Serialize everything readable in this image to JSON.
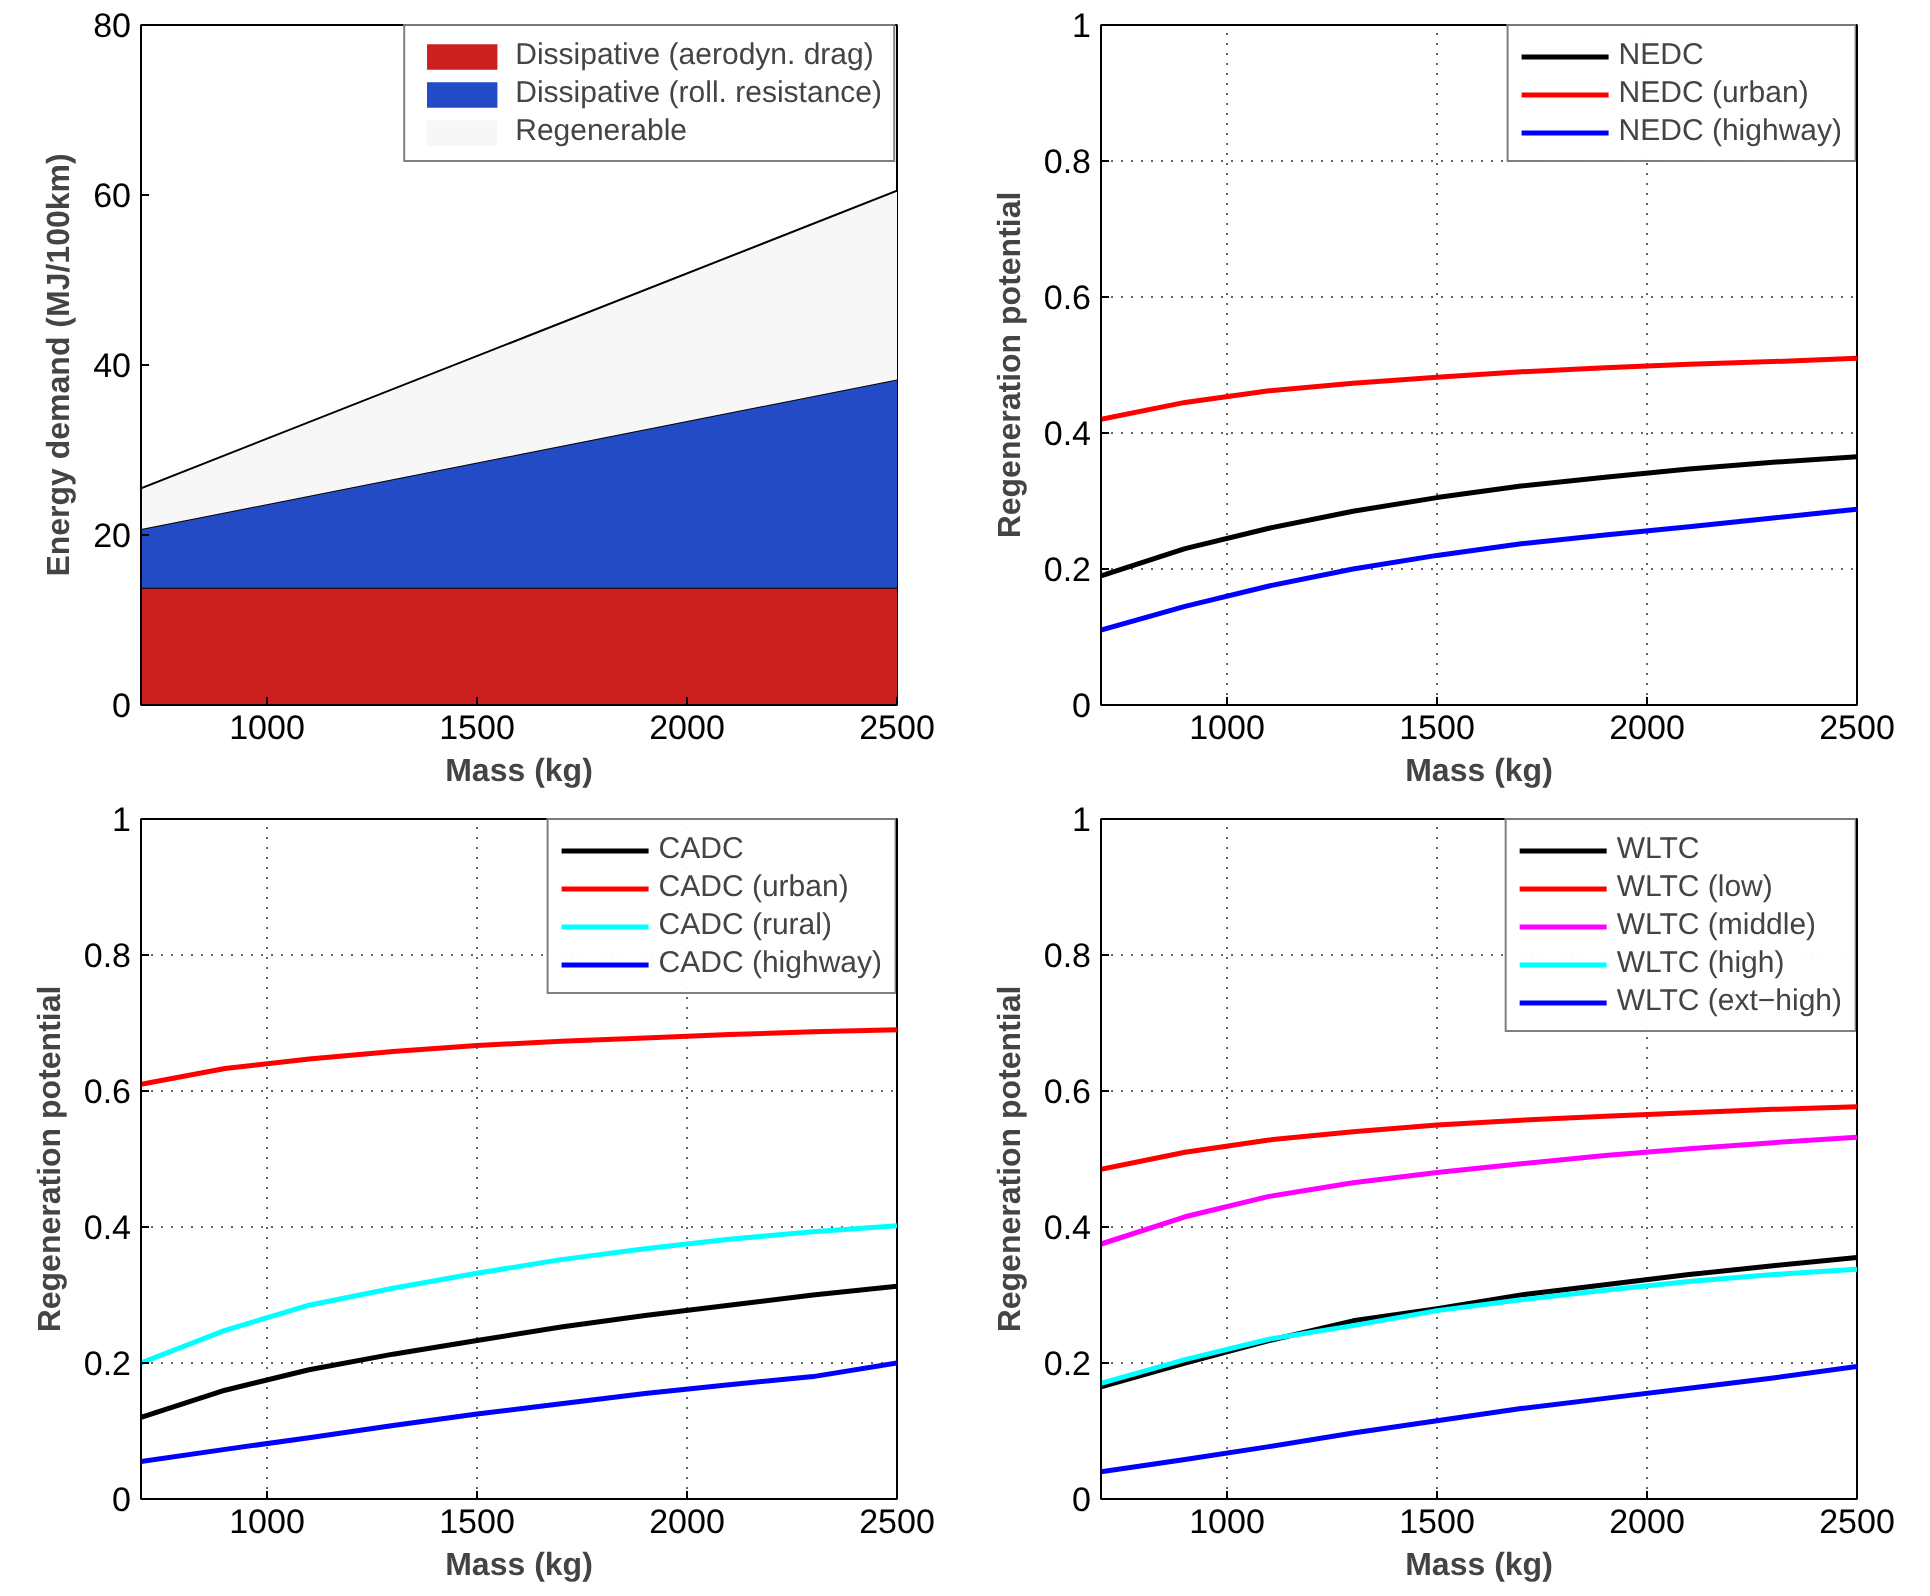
{
  "chart_data": [
    {
      "type": "area",
      "stacked": true,
      "xlabel": "Mass (kg)",
      "ylabel": "Energy demand (MJ/100km)",
      "x": [
        700,
        1600,
        2500
      ],
      "xlim": [
        700,
        2500
      ],
      "xticks": [
        1000,
        1500,
        2000,
        2500
      ],
      "ylim": [
        0,
        80
      ],
      "yticks": [
        0,
        20,
        40,
        60,
        80
      ],
      "legend": "top right",
      "series": [
        {
          "name": "Dissipative (aerodyn. drag)",
          "color": "#cc1f1f",
          "values": [
            13.8,
            13.8,
            13.8
          ]
        },
        {
          "name": "Dissipative (roll. resistance)",
          "color": "#234bc6",
          "values": [
            6.9,
            15.7,
            24.5
          ]
        },
        {
          "name": "Regenerable",
          "color": "#f7f7f7",
          "values": [
            4.8,
            13.5,
            22.2
          ]
        }
      ]
    },
    {
      "type": "line",
      "xlabel": "Mass (kg)",
      "ylabel": "Regeneration potential",
      "x": [
        700,
        900,
        1100,
        1300,
        1500,
        1700,
        1900,
        2100,
        2300,
        2500
      ],
      "xlim": [
        700,
        2500
      ],
      "xticks": [
        1000,
        1500,
        2000,
        2500
      ],
      "ylim": [
        0,
        1
      ],
      "yticks": [
        0,
        0.2,
        0.4,
        0.6,
        0.8,
        1
      ],
      "grid": true,
      "legend": "top right",
      "series": [
        {
          "name": "NEDC",
          "color": "#000000",
          "values": [
            0.19,
            0.23,
            0.26,
            0.285,
            0.305,
            0.322,
            0.335,
            0.347,
            0.357,
            0.365
          ]
        },
        {
          "name": "NEDC (urban)",
          "color": "#ff0000",
          "values": [
            0.42,
            0.445,
            0.462,
            0.473,
            0.482,
            0.49,
            0.496,
            0.501,
            0.505,
            0.51
          ]
        },
        {
          "name": "NEDC (highway)",
          "color": "#0000ff",
          "values": [
            0.11,
            0.145,
            0.175,
            0.2,
            0.22,
            0.237,
            0.25,
            0.262,
            0.275,
            0.288
          ]
        }
      ]
    },
    {
      "type": "line",
      "xlabel": "Mass (kg)",
      "ylabel": "Regeneration potential",
      "x": [
        700,
        900,
        1100,
        1300,
        1500,
        1700,
        1900,
        2100,
        2300,
        2500
      ],
      "xlim": [
        700,
        2500
      ],
      "xticks": [
        1000,
        1500,
        2000,
        2500
      ],
      "ylim": [
        0,
        1
      ],
      "yticks": [
        0,
        0.2,
        0.4,
        0.6,
        0.8,
        1
      ],
      "grid": true,
      "legend": "top right",
      "series": [
        {
          "name": "CADC",
          "color": "#000000",
          "values": [
            0.12,
            0.16,
            0.19,
            0.213,
            0.233,
            0.253,
            0.27,
            0.285,
            0.3,
            0.313
          ]
        },
        {
          "name": "CADC (urban)",
          "color": "#ff0000",
          "values": [
            0.61,
            0.633,
            0.647,
            0.658,
            0.667,
            0.673,
            0.678,
            0.683,
            0.687,
            0.69
          ]
        },
        {
          "name": "CADC (rural)",
          "color": "#00ffff",
          "values": [
            0.2,
            0.248,
            0.285,
            0.31,
            0.332,
            0.352,
            0.368,
            0.382,
            0.393,
            0.402
          ]
        },
        {
          "name": "CADC (highway)",
          "color": "#0000ff",
          "values": [
            0.055,
            0.073,
            0.09,
            0.108,
            0.125,
            0.14,
            0.155,
            0.168,
            0.18,
            0.2
          ]
        }
      ]
    },
    {
      "type": "line",
      "xlabel": "Mass (kg)",
      "ylabel": "Regeneration potential",
      "x": [
        700,
        900,
        1100,
        1300,
        1500,
        1700,
        1900,
        2100,
        2300,
        2500
      ],
      "xlim": [
        700,
        2500
      ],
      "xticks": [
        1000,
        1500,
        2000,
        2500
      ],
      "ylim": [
        0,
        1
      ],
      "yticks": [
        0,
        0.2,
        0.4,
        0.6,
        0.8,
        1
      ],
      "grid": true,
      "legend": "top right",
      "series": [
        {
          "name": "WLTC",
          "color": "#000000",
          "values": [
            0.165,
            0.2,
            0.233,
            0.262,
            0.28,
            0.3,
            0.315,
            0.33,
            0.343,
            0.355
          ]
        },
        {
          "name": "WLTC (low)",
          "color": "#ff0000",
          "values": [
            0.485,
            0.51,
            0.528,
            0.54,
            0.55,
            0.557,
            0.563,
            0.568,
            0.573,
            0.577
          ]
        },
        {
          "name": "WLTC (middle)",
          "color": "#ff00ff",
          "values": [
            0.375,
            0.415,
            0.445,
            0.465,
            0.48,
            0.493,
            0.505,
            0.515,
            0.524,
            0.532
          ]
        },
        {
          "name": "WLTC (high)",
          "color": "#00ffff",
          "values": [
            0.17,
            0.205,
            0.235,
            0.255,
            0.277,
            0.293,
            0.307,
            0.32,
            0.33,
            0.338
          ]
        },
        {
          "name": "WLTC (ext−high)",
          "color": "#0000ff",
          "values": [
            0.04,
            0.058,
            0.077,
            0.097,
            0.115,
            0.133,
            0.148,
            0.163,
            0.178,
            0.195
          ]
        }
      ]
    }
  ]
}
